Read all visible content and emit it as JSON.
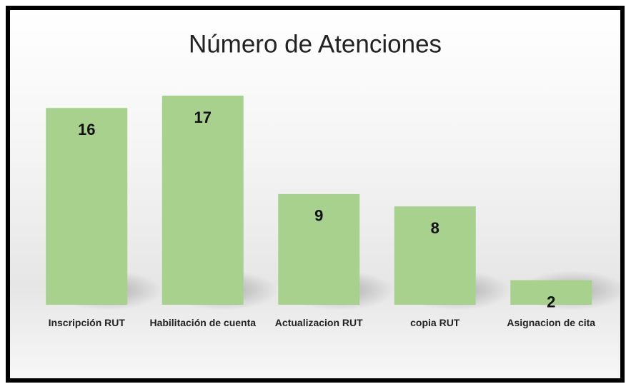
{
  "chart_data": {
    "type": "bar",
    "title": "Número de Atenciones",
    "categories": [
      "Inscripción RUT",
      "Habilitación de cuenta",
      "Actualizacion RUT",
      "copia RUT",
      "Asignacion de cita"
    ],
    "values": [
      16,
      17,
      9,
      8,
      2
    ],
    "color": "#a9d18e"
  }
}
